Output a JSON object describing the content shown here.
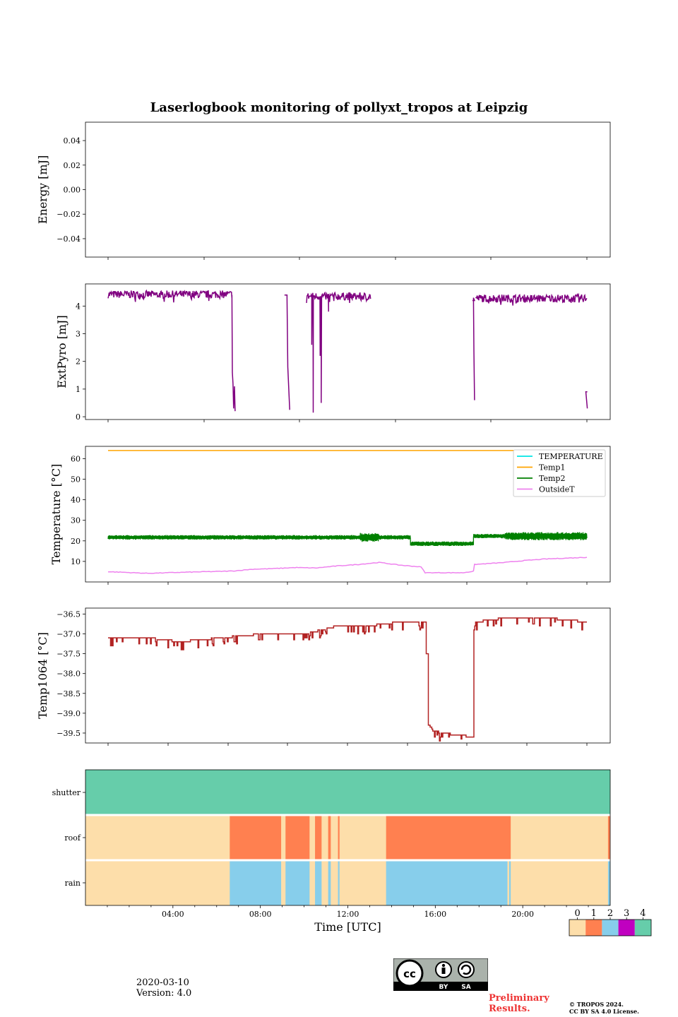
{
  "chart_data": [
    {
      "type": "line",
      "title": "Laserlogbook monitoring of pollyxt_tropos at Leipzig",
      "ylabel": "Energy [mJ]",
      "xlim": [
        0,
        24
      ],
      "ylim": [
        -0.055,
        0.055
      ],
      "yticks": [
        0.04,
        0.02,
        0.0,
        -0.02,
        -0.04
      ],
      "ytick_labels": [
        "0.04",
        "0.02",
        "0.00",
        "−0.02",
        "−0.04"
      ],
      "series": []
    },
    {
      "type": "line",
      "ylabel": "ExtPyro [mJ]",
      "xlim": [
        0,
        24
      ],
      "ylim": [
        -0.1,
        4.8
      ],
      "yticks": [
        0,
        1,
        2,
        3,
        4
      ],
      "ytick_labels": [
        "0",
        "1",
        "2",
        "3",
        "4"
      ],
      "series": [
        {
          "name": "ExtPyro",
          "color": "#800080",
          "segments": [
            {
              "x0": 1.1,
              "x1": 7.0,
              "level": 4.42,
              "noise": 0.14,
              "drop": [
                [
                  7.0,
                  4.4
                ],
                [
                  7.02,
                  1.6
                ],
                [
                  7.05,
                  1.2
                ],
                [
                  7.08,
                  0.3
                ],
                [
                  7.12,
                  1.1
                ],
                [
                  7.15,
                  0.2
                ]
              ]
            },
            {
              "x0": 9.5,
              "x1": 9.62,
              "level": 4.4,
              "noise": 0.12,
              "drop": [
                [
                  9.62,
                  4.3
                ],
                [
                  9.66,
                  1.8
                ],
                [
                  9.75,
                  0.25
                ]
              ]
            },
            {
              "x0": 10.55,
              "x1": 13.6,
              "level": 4.35,
              "noise": 0.14,
              "spikes": [
                [
                  10.8,
                  2.6
                ],
                [
                  10.87,
                  0.15
                ],
                [
                  11.2,
                  2.2
                ],
                [
                  11.25,
                  0.5
                ],
                [
                  11.6,
                  3.8
                ]
              ]
            },
            {
              "x0": 18.45,
              "x1": 18.55,
              "level": 4.2,
              "noise": 0.05,
              "drop": [
                [
                  18.5,
                  4.3
                ],
                [
                  18.52,
                  2.4
                ],
                [
                  18.55,
                  0.6
                ]
              ]
            },
            {
              "x0": 18.6,
              "x1": 23.9,
              "level": 4.28,
              "noise": 0.14
            },
            {
              "x0": 23.85,
              "x1": 23.92,
              "level": 0.9,
              "noise": 0.0,
              "drop": [
                [
                  23.85,
                  0.9
                ],
                [
                  23.92,
                  0.3
                ]
              ]
            }
          ]
        }
      ]
    },
    {
      "type": "line",
      "ylabel": "Temperature [°C]",
      "xlim": [
        0,
        24
      ],
      "ylim": [
        0,
        66
      ],
      "yticks": [
        10,
        20,
        30,
        40,
        50,
        60
      ],
      "ytick_labels": [
        "10",
        "20",
        "30",
        "40",
        "50",
        "60"
      ],
      "legend_position": "top-right",
      "series": [
        {
          "name": "TEMPERATURE",
          "color": "#00e5e5",
          "values": []
        },
        {
          "name": "Temp1",
          "color": "#ffa500",
          "level": 64
        },
        {
          "name": "Temp2",
          "color": "#008000",
          "pieces": [
            [
              1.1,
              15.5,
              21.7
            ],
            [
              15.5,
              18.5,
              18.6
            ],
            [
              18.5,
              23.9,
              22.3
            ]
          ]
        },
        {
          "name": "OutsideT",
          "color": "#ee82ee",
          "points": [
            [
              1.1,
              5.0
            ],
            [
              3.0,
              4.2
            ],
            [
              5.0,
              4.8
            ],
            [
              7.0,
              5.3
            ],
            [
              8.0,
              6.2
            ],
            [
              9.0,
              6.5
            ],
            [
              10.0,
              7.0
            ],
            [
              11.0,
              6.8
            ],
            [
              12.0,
              7.8
            ],
            [
              13.0,
              8.5
            ],
            [
              14.0,
              9.5
            ],
            [
              15.0,
              8.2
            ],
            [
              16.0,
              7.3
            ],
            [
              16.2,
              4.5
            ],
            [
              18.0,
              4.5
            ],
            [
              18.5,
              5.2
            ],
            [
              18.55,
              8.5
            ],
            [
              20.0,
              9.5
            ],
            [
              21.0,
              10.5
            ],
            [
              22.0,
              11.2
            ],
            [
              23.9,
              12.0
            ]
          ]
        }
      ]
    },
    {
      "type": "line",
      "ylabel": "Temp1064 [°C]",
      "xlim": [
        0,
        24
      ],
      "ylim": [
        -39.75,
        -36.35
      ],
      "yticks": [
        -36.5,
        -37.0,
        -37.5,
        -38.0,
        -38.5,
        -39.0,
        -39.5
      ],
      "ytick_labels": [
        "−36.5",
        "−37.0",
        "−37.5",
        "−38.0",
        "−38.5",
        "−39.0",
        "−39.5"
      ],
      "series": [
        {
          "name": "Temp1064",
          "color": "#b22222",
          "points": [
            [
              1.1,
              -37.1
            ],
            [
              3.0,
              -37.1
            ],
            [
              4.5,
              -37.2
            ],
            [
              6.5,
              -37.1
            ],
            [
              8.5,
              -37.0
            ],
            [
              10.5,
              -37.0
            ],
            [
              12.0,
              -36.8
            ],
            [
              13.5,
              -36.8
            ],
            [
              15.0,
              -36.7
            ],
            [
              16.1,
              -36.7
            ],
            [
              16.25,
              -37.5
            ],
            [
              16.35,
              -39.3
            ],
            [
              16.6,
              -39.45
            ],
            [
              17.0,
              -39.5
            ],
            [
              18.5,
              -39.6
            ],
            [
              18.52,
              -36.9
            ],
            [
              18.6,
              -36.7
            ],
            [
              20.0,
              -36.6
            ],
            [
              22.0,
              -36.6
            ],
            [
              23.9,
              -36.7
            ]
          ]
        }
      ]
    },
    {
      "type": "heatmap",
      "xlabel": "Time [UTC]",
      "xlim": [
        0,
        24
      ],
      "xticks": [
        4,
        8,
        12,
        16,
        20
      ],
      "xtick_labels": [
        "04:00",
        "08:00",
        "12:00",
        "16:00",
        "20:00"
      ],
      "rows": [
        "shutter",
        "roof",
        "rain"
      ],
      "colorbar": {
        "ticks": [
          "0",
          "1",
          "2",
          "3",
          "4"
        ],
        "colors": [
          "#fddeaa",
          "#ff8050",
          "#87ceeb",
          "#c000c0",
          "#66cdaa"
        ]
      },
      "row_states": {
        "shutter": [
          [
            0,
            24,
            4
          ]
        ],
        "roof": [
          [
            0,
            6.6,
            0
          ],
          [
            6.6,
            8.95,
            1
          ],
          [
            9.15,
            10.25,
            1
          ],
          [
            10.5,
            10.8,
            1
          ],
          [
            11.1,
            11.22,
            1
          ],
          [
            11.55,
            11.62,
            1
          ],
          [
            13.75,
            19.45,
            1
          ],
          [
            23.9,
            24,
            1
          ]
        ],
        "rain": [
          [
            0,
            6.6,
            0
          ],
          [
            6.6,
            8.95,
            2
          ],
          [
            9.15,
            10.25,
            2
          ],
          [
            10.5,
            10.8,
            2
          ],
          [
            11.1,
            11.22,
            2
          ],
          [
            11.55,
            11.62,
            2
          ],
          [
            13.75,
            19.3,
            2
          ],
          [
            19.38,
            19.45,
            2
          ],
          [
            23.9,
            24,
            2
          ]
        ]
      }
    }
  ],
  "footer": {
    "date": "2020-03-10",
    "version": "Version: 4.0",
    "preliminary_1": "Preliminary",
    "preliminary_2": "Results.",
    "copyright_1": "© TROPOS 2024.",
    "copyright_2": "CC BY SA 4.0 License.",
    "badge_by": "BY",
    "badge_sa": "SA"
  }
}
